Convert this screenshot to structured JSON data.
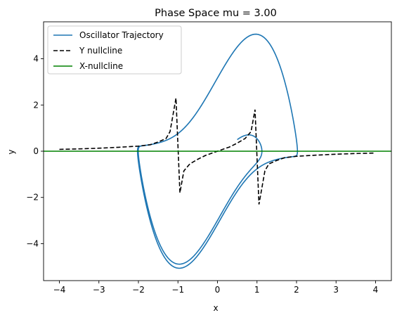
{
  "chart_data": {
    "type": "line",
    "title": "Phase Space mu = 3.00",
    "xlabel": "x",
    "ylabel": "y",
    "xlim": [
      -4.4,
      4.4
    ],
    "ylim": [
      -5.6,
      5.6
    ],
    "xticks": [
      -4,
      -3,
      -2,
      -1,
      0,
      1,
      2,
      3,
      4
    ],
    "yticks": [
      -4,
      -2,
      0,
      2,
      4
    ],
    "xtick_labels": [
      "−4",
      "−3",
      "−2",
      "−1",
      "0",
      "1",
      "2",
      "3",
      "4"
    ],
    "ytick_labels": [
      "−4",
      "−2",
      "0",
      "2",
      "4"
    ],
    "grid": false,
    "legend_position": "upper-left",
    "series": [
      {
        "name": "Oscillator Trajectory",
        "style": "solid",
        "color": "#1f77b4",
        "mu": 3.0,
        "x0": 0.5,
        "y0": 0.5
      },
      {
        "name": "Y nullcline",
        "style": "dashed",
        "color": "#000000",
        "x": [
          -4.0,
          -3.5,
          -3.0,
          -2.5,
          -2.0,
          -1.7,
          -1.5,
          -1.3,
          -1.2,
          -1.05,
          -0.95,
          -0.85,
          -0.7,
          -0.5,
          -0.3,
          0.0,
          0.3,
          0.5,
          0.7,
          0.85,
          0.95,
          1.05,
          1.2,
          1.3,
          1.5,
          1.7,
          2.0,
          2.5,
          3.0,
          3.5,
          4.0
        ],
        "y": [
          0.08,
          0.1,
          0.13,
          0.17,
          0.22,
          0.28,
          0.4,
          0.55,
          0.85,
          2.3,
          -1.8,
          -0.85,
          -0.55,
          -0.35,
          -0.18,
          0.0,
          0.18,
          0.35,
          0.55,
          0.85,
          1.8,
          -2.3,
          -0.85,
          -0.55,
          -0.4,
          -0.28,
          -0.22,
          -0.17,
          -0.13,
          -0.1,
          -0.08
        ]
      },
      {
        "name": "X-nullcline",
        "style": "solid",
        "color": "#008000",
        "x": [
          -4.4,
          4.4
        ],
        "y": [
          0.0,
          0.0
        ]
      }
    ]
  }
}
